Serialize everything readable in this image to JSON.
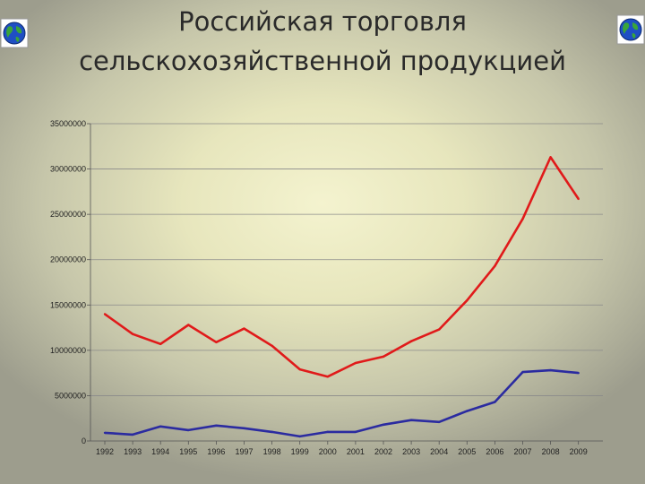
{
  "chart_data": {
    "type": "line",
    "title": "Российская торговля сельскохозяйственной продукцией",
    "categories": [
      "1992",
      "1993",
      "1994",
      "1995",
      "1996",
      "1997",
      "1998",
      "1999",
      "2000",
      "2001",
      "2002",
      "2003",
      "2004",
      "2005",
      "2006",
      "2007",
      "2008",
      "2009"
    ],
    "ylim": [
      0,
      35000000
    ],
    "yticks": [
      "0",
      "5000000",
      "10000000",
      "15000000",
      "20000000",
      "25000000",
      "30000000",
      "35000000"
    ],
    "grid": true,
    "series": [
      {
        "color": "#e01a1a",
        "values": [
          14000000,
          11800000,
          10700000,
          12800000,
          10900000,
          12400000,
          10500000,
          7900000,
          7100000,
          8600000,
          9300000,
          11000000,
          12300000,
          15500000,
          19300000,
          24500000,
          31300000,
          26700000
        ]
      },
      {
        "color": "#2b2ba0",
        "values": [
          900000,
          700000,
          1600000,
          1200000,
          1700000,
          1400000,
          1000000,
          500000,
          1000000,
          1000000,
          1800000,
          2300000,
          2100000,
          3300000,
          4300000,
          7600000,
          7800000,
          7500000
        ]
      }
    ]
  },
  "icons": {
    "left": "globe-icon",
    "right": "globe-icon"
  }
}
